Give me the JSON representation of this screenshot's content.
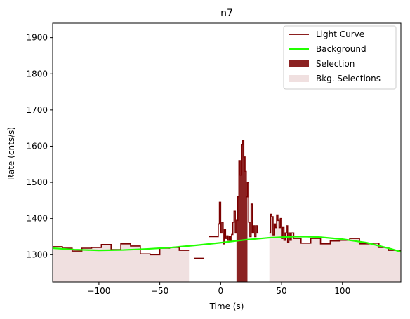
{
  "chart_data": {
    "type": "line",
    "title": "n7",
    "xlabel": "Time (s)",
    "ylabel": "Rate (cnts/s)",
    "xlim": [
      -138,
      148
    ],
    "ylim": [
      1225,
      1940
    ],
    "xticks": [
      -100,
      -50,
      0,
      50,
      100
    ],
    "yticks": [
      1300,
      1400,
      1500,
      1600,
      1700,
      1800,
      1900
    ],
    "grid": false,
    "legend_position": "top-right",
    "colors": {
      "light_curve": "#7b0000",
      "background": "#22ff00",
      "selection": "#8b2222",
      "bkg_selection": "#f0e0e0"
    },
    "legend": [
      {
        "label": "Light Curve",
        "kind": "line",
        "color": "#7b0000"
      },
      {
        "label": "Background",
        "kind": "line",
        "color": "#22ff00"
      },
      {
        "label": "Selection",
        "kind": "patch",
        "color": "#8b2222"
      },
      {
        "label": "Bkg. Selections",
        "kind": "patch",
        "color": "#f0e0e0"
      }
    ],
    "series": [
      {
        "name": "Light Curve",
        "kind": "step",
        "segments": [
          {
            "x": [
              -138,
              -130,
              -122,
              -114,
              -106,
              -98,
              -90,
              -82,
              -74,
              -66,
              -58,
              -50,
              -42,
              -34,
              -26
            ],
            "y": [
              1322,
              1318,
              1310,
              1318,
              1320,
              1328,
              1314,
              1330,
              1324,
              1302,
              1300,
              1318,
              1320,
              1312,
              1312
            ]
          },
          {
            "x": [
              -22,
              -14
            ],
            "y": [
              1290,
              1290
            ]
          },
          {
            "x": [
              -10,
              -2,
              -1,
              0,
              1,
              2,
              3,
              4,
              5,
              6,
              7,
              8,
              9,
              10,
              11,
              12,
              13,
              14,
              15,
              16,
              17,
              18,
              19,
              20,
              21,
              22,
              23,
              24,
              25,
              26,
              27,
              28,
              29,
              30,
              31
            ],
            "y": [
              1350,
              1385,
              1445,
              1360,
              1390,
              1330,
              1370,
              1345,
              1352,
              1340,
              1350,
              1340,
              1356,
              1390,
              1420,
              1360,
              1395,
              1460,
              1560,
              1520,
              1605,
              1615,
              1570,
              1530,
              1460,
              1500,
              1390,
              1350,
              1440,
              1360,
              1380,
              1350,
              1380,
              1360,
              1360
            ]
          },
          {
            "x": [
              40,
              41,
              42,
              43,
              44,
              45,
              46,
              47,
              48,
              49,
              50,
              51,
              52,
              53,
              54,
              55,
              56,
              57,
              58,
              60,
              66,
              74,
              82,
              90,
              98,
              106,
              114,
              122,
              130,
              138,
              148
            ],
            "y": [
              1360,
              1412,
              1405,
              1355,
              1385,
              1375,
              1410,
              1395,
              1375,
              1400,
              1345,
              1375,
              1340,
              1360,
              1380,
              1335,
              1360,
              1340,
              1360,
              1345,
              1332,
              1345,
              1330,
              1338,
              1340,
              1345,
              1330,
              1332,
              1320,
              1312,
              1312
            ]
          }
        ]
      },
      {
        "name": "Background",
        "kind": "line",
        "x": [
          -138,
          -120,
          -100,
          -80,
          -60,
          -40,
          -20,
          0,
          20,
          40,
          60,
          70,
          80,
          100,
          120,
          140,
          148
        ],
        "y": [
          1318,
          1314,
          1312,
          1313,
          1316,
          1320,
          1326,
          1333,
          1341,
          1347,
          1350,
          1350,
          1349,
          1343,
          1333,
          1316,
          1308
        ]
      }
    ],
    "selection_interval": [
      13,
      22
    ],
    "bkg_selection_intervals": [
      [
        -138,
        -22
      ],
      [
        40,
        148
      ]
    ]
  }
}
